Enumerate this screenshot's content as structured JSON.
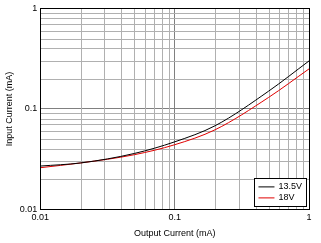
{
  "chart_data": {
    "type": "line",
    "x_label": "Output Current (mA)",
    "y_label": "Input Current (mA)",
    "log": true,
    "grid": true,
    "legend": "lower right",
    "xlim": [
      0.01,
      1
    ],
    "ylim": [
      0.01,
      1
    ],
    "xticks": [
      0.01,
      0.1,
      1
    ],
    "yticks": [
      0.01,
      0.1,
      1
    ],
    "x": [
      0.01,
      0.02,
      0.05,
      0.1,
      0.2,
      0.5,
      1
    ],
    "series": [
      {
        "name": "13.5V",
        "color": "#000000",
        "values": [
          0.027,
          0.029,
          0.036,
          0.047,
          0.068,
          0.15,
          0.3
        ]
      },
      {
        "name": "18V",
        "color": "#e00000",
        "values": [
          0.026,
          0.029,
          0.035,
          0.044,
          0.062,
          0.13,
          0.25
        ]
      }
    ]
  }
}
